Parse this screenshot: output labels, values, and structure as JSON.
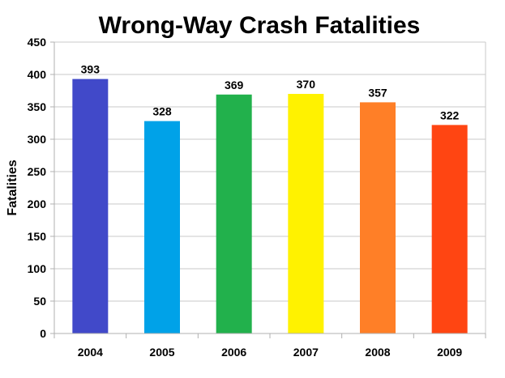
{
  "chart_data": {
    "type": "bar",
    "title": "Wrong-Way Crash Fatalities",
    "xlabel": "",
    "ylabel": "Fatalities",
    "categories": [
      "2004",
      "2005",
      "2006",
      "2007",
      "2008",
      "2009"
    ],
    "values": [
      393,
      328,
      369,
      370,
      357,
      322
    ],
    "colors": [
      "#4149c9",
      "#00a2e8",
      "#22b14c",
      "#fff200",
      "#ff7f27",
      "#ff4512"
    ],
    "ylim": [
      0,
      450
    ],
    "yticks": [
      0,
      50,
      100,
      150,
      200,
      250,
      300,
      350,
      400,
      450
    ],
    "grid": true,
    "legend": "none",
    "data_labels": true
  }
}
